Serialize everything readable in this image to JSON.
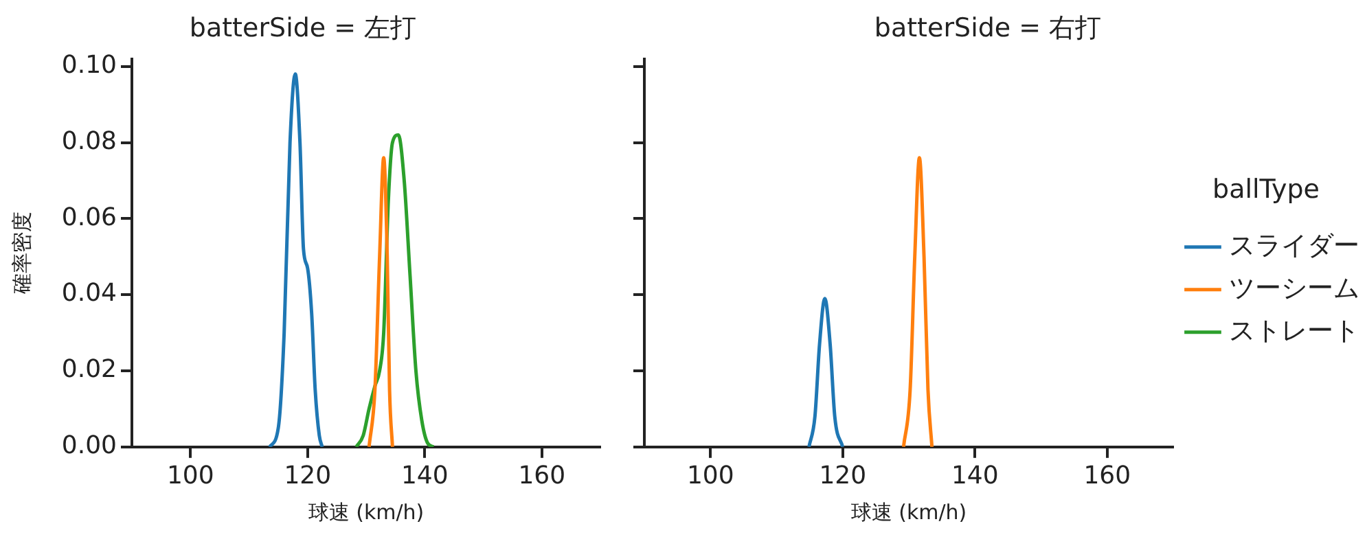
{
  "chart_data": [
    {
      "type": "line",
      "title": "batterSide = 左打",
      "xlabel": "球速 (km/h)",
      "ylabel": "確率密度",
      "xlim": [
        90,
        170
      ],
      "xticks": [
        100,
        120,
        140,
        160
      ],
      "ylim": [
        0,
        0.102
      ],
      "yticks": [
        {
          "value": 0,
          "label": "0.00"
        },
        {
          "value": 0.02,
          "label": "0.02"
        },
        {
          "value": 0.04,
          "label": "0.04"
        },
        {
          "value": 0.06,
          "label": "0.06"
        },
        {
          "value": 0.08,
          "label": "0.08"
        },
        {
          "value": 0.1,
          "label": "0.10"
        }
      ],
      "grid": false,
      "legend": false,
      "marker": "none",
      "line_style": "solid",
      "series": [
        {
          "color": "#1f77b4",
          "x": [
            113.5,
            115,
            116,
            117,
            117.9,
            118.7,
            119.3,
            120,
            120.7,
            121.3,
            122,
            122.5
          ],
          "values": [
            0,
            0.005,
            0.03,
            0.08,
            0.098,
            0.08,
            0.052,
            0.047,
            0.035,
            0.015,
            0.003,
            0
          ]
        },
        {
          "color": "#ff7f0e",
          "x": [
            130.5,
            131.5,
            132.3,
            133,
            133.6,
            134,
            134.5
          ],
          "values": [
            0,
            0.015,
            0.05,
            0.076,
            0.05,
            0.015,
            0
          ]
        },
        {
          "color": "#2ca02c",
          "x": [
            128.3,
            129.5,
            130.5,
            131.5,
            132.3,
            133,
            133.8,
            134.5,
            135.5,
            136.5,
            137.5,
            138.5,
            139.5,
            140.5,
            141.5
          ],
          "values": [
            0,
            0.003,
            0.01,
            0.016,
            0.02,
            0.03,
            0.065,
            0.08,
            0.082,
            0.07,
            0.045,
            0.02,
            0.007,
            0.001,
            0
          ]
        }
      ]
    },
    {
      "type": "line",
      "title": "batterSide = 右打",
      "xlabel": "球速 (km/h)",
      "legend_title": "ballType",
      "xlim": [
        90,
        170
      ],
      "xticks": [
        100,
        120,
        140,
        160
      ],
      "ylim": [
        0,
        0.102
      ],
      "yticks": [
        0,
        0.02,
        0.04,
        0.06,
        0.08,
        0.1
      ],
      "tick_labels": "x",
      "grid": false,
      "legend": "right",
      "marker": "none",
      "line_style": "solid",
      "series": [
        {
          "name": "スライダー",
          "color": "#1f77b4",
          "x": [
            114.9,
            115.8,
            116.5,
            117.3,
            118.1,
            118.8,
            120
          ],
          "values": [
            0,
            0.008,
            0.027,
            0.039,
            0.027,
            0.008,
            0
          ]
        },
        {
          "name": "ツーシーム",
          "color": "#ff7f0e",
          "x": [
            129.2,
            130.2,
            130.9,
            131.6,
            132.3,
            132.9,
            133.5
          ],
          "values": [
            0,
            0.015,
            0.05,
            0.076,
            0.05,
            0.015,
            0
          ]
        },
        {
          "name": "ストレート",
          "color": "#2ca02c"
        }
      ]
    }
  ]
}
